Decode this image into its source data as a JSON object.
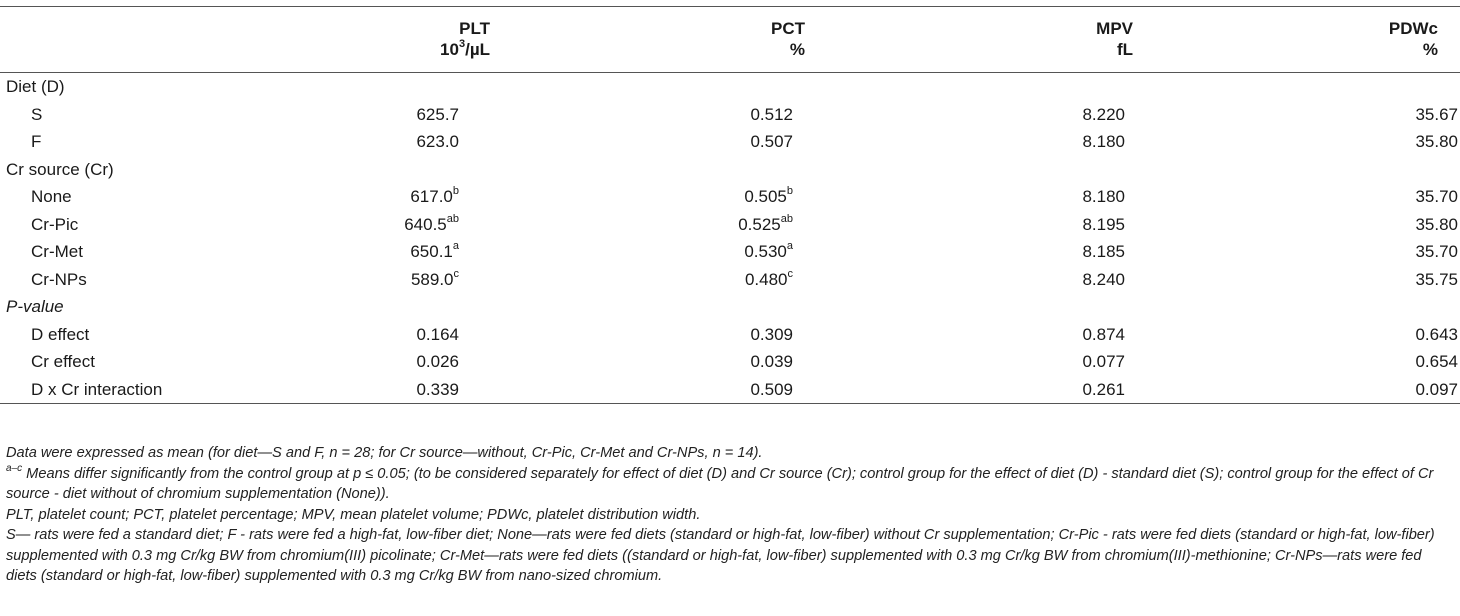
{
  "table": {
    "headers": [
      {
        "name": "PLT",
        "unit_prefix": "10",
        "unit_sup": "3",
        "unit_suffix": "/µL"
      },
      {
        "name": "PCT",
        "unit": "%"
      },
      {
        "name": "MPV",
        "unit": "fL"
      },
      {
        "name": "PDWc",
        "unit": "%"
      }
    ],
    "rows": [
      {
        "label": "Diet (D)",
        "kind": "section",
        "cells": [
          "",
          "",
          "",
          ""
        ]
      },
      {
        "label": "S",
        "kind": "sub",
        "cells": [
          {
            "v": "625.7"
          },
          {
            "v": "0.512"
          },
          {
            "v": "8.220"
          },
          {
            "v": "35.67"
          }
        ]
      },
      {
        "label": "F",
        "kind": "sub",
        "cells": [
          {
            "v": "623.0"
          },
          {
            "v": "0.507"
          },
          {
            "v": "8.180"
          },
          {
            "v": "35.80"
          }
        ]
      },
      {
        "label": "Cr source (Cr)",
        "kind": "section",
        "cells": [
          "",
          "",
          "",
          ""
        ]
      },
      {
        "label": "None",
        "kind": "sub",
        "cells": [
          {
            "v": "617.0",
            "s": "b"
          },
          {
            "v": "0.505",
            "s": "b"
          },
          {
            "v": "8.180"
          },
          {
            "v": "35.70"
          }
        ]
      },
      {
        "label": "Cr-Pic",
        "kind": "sub",
        "cells": [
          {
            "v": "640.5",
            "s": "ab"
          },
          {
            "v": "0.525",
            "s": "ab"
          },
          {
            "v": "8.195"
          },
          {
            "v": "35.80"
          }
        ]
      },
      {
        "label": "Cr-Met",
        "kind": "sub",
        "cells": [
          {
            "v": "650.1",
            "s": "a"
          },
          {
            "v": "0.530",
            "s": "a"
          },
          {
            "v": "8.185"
          },
          {
            "v": "35.70"
          }
        ]
      },
      {
        "label": "Cr-NPs",
        "kind": "sub",
        "cells": [
          {
            "v": "589.0",
            "s": "c"
          },
          {
            "v": "0.480",
            "s": "c"
          },
          {
            "v": "8.240"
          },
          {
            "v": "35.75"
          }
        ]
      },
      {
        "label": "P-value",
        "kind": "section-italic",
        "cells": [
          "",
          "",
          "",
          ""
        ]
      },
      {
        "label": "D effect",
        "kind": "sub",
        "cells": [
          {
            "v": "0.164"
          },
          {
            "v": "0.309"
          },
          {
            "v": "0.874"
          },
          {
            "v": "0.643"
          }
        ]
      },
      {
        "label": "Cr effect",
        "kind": "sub",
        "cells": [
          {
            "v": "0.026"
          },
          {
            "v": "0.039"
          },
          {
            "v": "0.077"
          },
          {
            "v": "0.654"
          }
        ]
      },
      {
        "label": "D x Cr interaction",
        "kind": "sub",
        "cells": [
          {
            "v": "0.339"
          },
          {
            "v": "0.509"
          },
          {
            "v": "0.261"
          },
          {
            "v": "0.097"
          }
        ]
      }
    ]
  },
  "footnotes": {
    "n1": "Data were expressed as mean (for diet—S and F, n = 28; for Cr source—without, Cr-Pic, Cr-Met and Cr-NPs, n = 14).",
    "n2_sup": "a–c",
    "n2": " Means differ significantly from the control group at p ≤ 0.05; (to be considered separately for effect of diet (D) and Cr source (Cr); control group for the effect of diet (D) - standard diet (S); control group for the effect of Cr source - diet without of chromium supplementation (None)).",
    "n3": "PLT, platelet count; PCT, platelet percentage; MPV, mean platelet volume; PDWc, platelet distribution width.",
    "n4": "S— rats were fed a standard diet; F - rats were fed a high-fat, low-fiber diet; None—rats were fed diets (standard or high-fat, low-fiber) without Cr supplementation; Cr-Pic - rats were fed diets (standard or high-fat, low-fiber) supplemented with 0.3 mg Cr/kg BW from chromium(III) picolinate; Cr-Met—rats were fed diets ((standard or high-fat, low-fiber) supplemented with 0.3 mg Cr/kg BW from chromium(III)-methionine; Cr-NPs—rats were fed diets (standard or high-fat, low-fiber) supplemented with 0.3 mg Cr/kg BW from nano-sized chromium."
  }
}
